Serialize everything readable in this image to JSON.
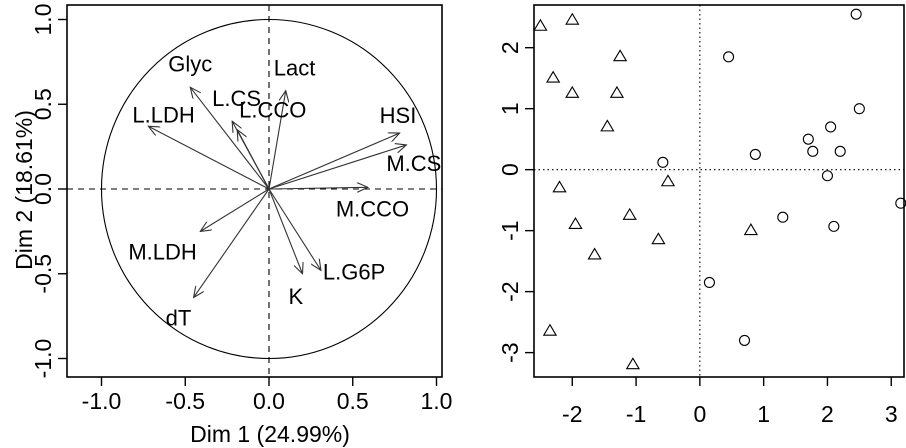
{
  "chart_data": [
    {
      "type": "pca-correlation-circle",
      "xlabel": "Dim 1 (24.99%)",
      "ylabel": "Dim 2 (18.61%)",
      "xlim": [
        -1.0,
        1.0
      ],
      "ylim": [
        -1.0,
        1.0
      ],
      "xticks": [
        "-1.0",
        "-0.5",
        "0.0",
        "0.5",
        "1.0"
      ],
      "yticks": [
        "-1.0",
        "-0.5",
        "0.0",
        "0.5",
        "1.0"
      ],
      "unit_circle": true,
      "reference_lines": "dashed at x=0 and y=0",
      "variables": [
        {
          "name": "Glyc",
          "x": -0.47,
          "y": 0.6
        },
        {
          "name": "Lact",
          "x": 0.1,
          "y": 0.58
        },
        {
          "name": "L.LDH",
          "x": -0.72,
          "y": 0.37
        },
        {
          "name": "L.CS",
          "x": -0.22,
          "y": 0.4
        },
        {
          "name": "L.CCO",
          "x": -0.19,
          "y": 0.35
        },
        {
          "name": "HSI",
          "x": 0.78,
          "y": 0.33
        },
        {
          "name": "M.CS",
          "x": 0.82,
          "y": 0.26
        },
        {
          "name": "M.CCO",
          "x": 0.59,
          "y": 0.01
        },
        {
          "name": "M.LDH",
          "x": -0.41,
          "y": -0.25
        },
        {
          "name": "dT",
          "x": -0.45,
          "y": -0.64
        },
        {
          "name": "K",
          "x": 0.2,
          "y": -0.5
        },
        {
          "name": "L.G6P",
          "x": 0.31,
          "y": -0.48
        }
      ]
    },
    {
      "type": "scatter",
      "xlabel": "",
      "ylabel": "",
      "xlim": [
        -2.6,
        3.2
      ],
      "ylim": [
        -3.4,
        2.7
      ],
      "xticks": [
        "-2",
        "-1",
        "0",
        "1",
        "2",
        "3"
      ],
      "yticks": [
        "-3",
        "-2",
        "-1",
        "0",
        "1",
        "2"
      ],
      "reference_lines": "dotted at x=0 and y=0",
      "series": [
        {
          "marker": "triangle",
          "points": [
            [
              -2.5,
              2.35
            ],
            [
              -2.0,
              2.45
            ],
            [
              -2.3,
              1.5
            ],
            [
              -1.25,
              1.85
            ],
            [
              -2.0,
              1.25
            ],
            [
              -1.3,
              1.25
            ],
            [
              -1.45,
              0.7
            ],
            [
              -0.5,
              -0.2
            ],
            [
              -2.2,
              -0.3
            ],
            [
              -1.95,
              -0.9
            ],
            [
              -1.1,
              -0.75
            ],
            [
              -0.65,
              -1.15
            ],
            [
              0.8,
              -1.0
            ],
            [
              -1.65,
              -1.4
            ],
            [
              -2.35,
              -2.65
            ],
            [
              -1.05,
              -3.2
            ]
          ]
        },
        {
          "marker": "circle",
          "points": [
            [
              2.45,
              2.55
            ],
            [
              0.45,
              1.85
            ],
            [
              2.5,
              1.0
            ],
            [
              2.05,
              0.7
            ],
            [
              1.7,
              0.5
            ],
            [
              2.2,
              0.3
            ],
            [
              1.77,
              0.3
            ],
            [
              0.87,
              0.25
            ],
            [
              -0.58,
              0.12
            ],
            [
              2.0,
              -0.1
            ],
            [
              3.15,
              -0.55
            ],
            [
              1.3,
              -0.78
            ],
            [
              2.1,
              -0.93
            ],
            [
              0.15,
              -1.85
            ],
            [
              0.7,
              -2.8
            ]
          ]
        }
      ]
    }
  ]
}
